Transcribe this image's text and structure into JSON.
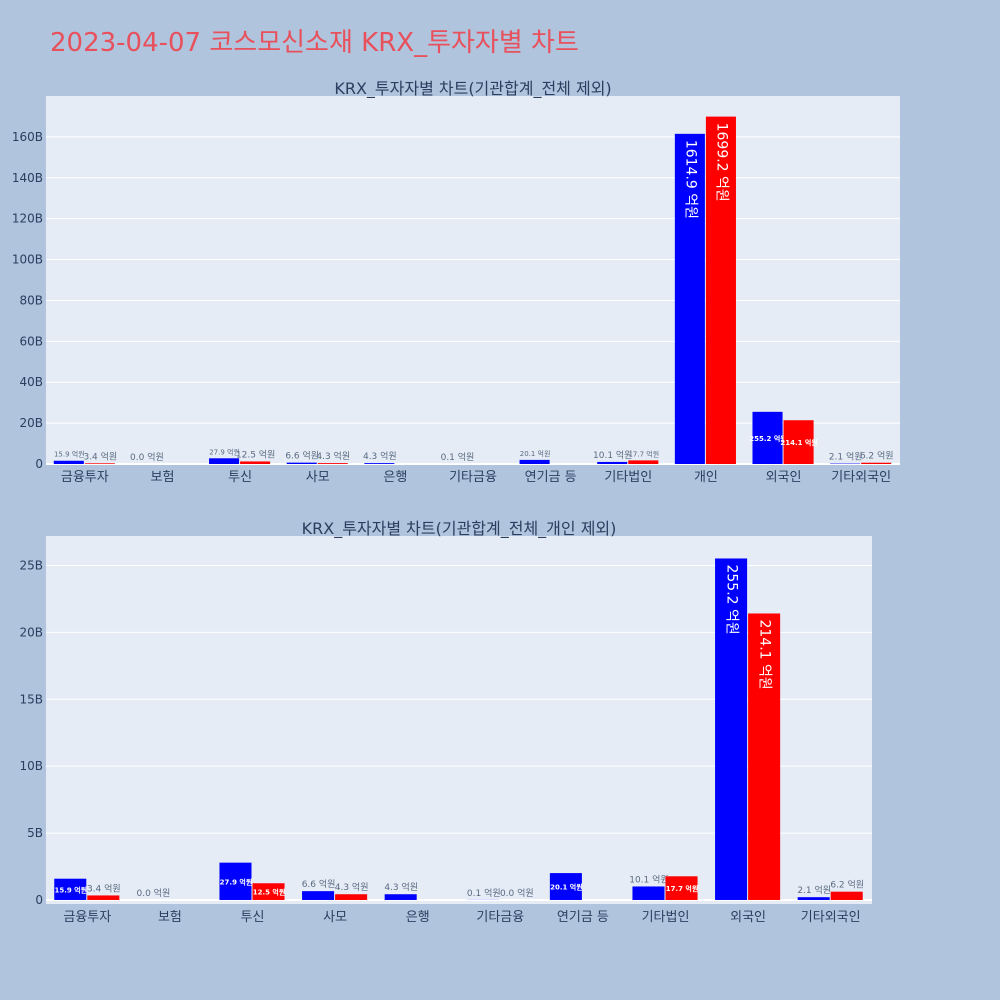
{
  "page": {
    "title": "2023-04-07 코스모신소재 KRX_투자자별 차트"
  },
  "colors": {
    "background": "#b0c4de",
    "plot_bg": "#e5ecf6",
    "buy": "#0000ff",
    "sell": "#ff0000",
    "title": "#e8505b"
  },
  "chart_data": [
    {
      "type": "bar",
      "title": "KRX_투자자별 차트(기관합계_전체 제외)",
      "categories": [
        "금융투자",
        "보험",
        "투신",
        "사모",
        "은행",
        "기타금융",
        "연기금 등",
        "기타법인",
        "개인",
        "외국인",
        "기타외국인"
      ],
      "series": [
        {
          "values": [
            1.59,
            0.0,
            2.79,
            0.66,
            0.43,
            0.01,
            2.01,
            1.01,
            161.49,
            25.52,
            0.21
          ],
          "labels": [
            "15.9 억원",
            "0.0 억원",
            "27.9 억원",
            "6.6 억원",
            "4.3 억원",
            "0.1 억원",
            "20.1 억원",
            "10.1 억원",
            "1614.9 억원",
            "255.2 억원",
            "2.1 억원"
          ]
        },
        {
          "values": [
            0.34,
            null,
            1.25,
            0.43,
            null,
            null,
            null,
            1.77,
            169.92,
            21.41,
            0.62
          ],
          "labels": [
            "3.4 억원",
            "",
            "12.5 억원",
            "4.3 억원",
            "",
            "",
            "",
            "17.7 억원",
            "1699.2 억원",
            "214.1 억원",
            "6.2 억원"
          ]
        }
      ],
      "ylim": [
        0,
        180
      ],
      "yticks": [
        "0",
        "20B",
        "40B",
        "60B",
        "80B",
        "100B",
        "120B",
        "140B",
        "160B"
      ],
      "ytick_values": [
        0,
        20,
        40,
        60,
        80,
        100,
        120,
        140,
        160
      ]
    },
    {
      "type": "bar",
      "title": "KRX_투자자별 차트(기관합계_전체_개인 제외)",
      "categories": [
        "금융투자",
        "보험",
        "투신",
        "사모",
        "은행",
        "기타금융",
        "연기금 등",
        "기타법인",
        "외국인",
        "기타외국인"
      ],
      "series": [
        {
          "values": [
            1.59,
            0.0,
            2.79,
            0.66,
            0.43,
            0.01,
            2.01,
            1.01,
            25.52,
            0.21
          ],
          "labels": [
            "15.9 억원",
            "0.0 억원",
            "27.9 억원",
            "6.6 억원",
            "4.3 억원",
            "0.1 억원",
            "20.1 억원",
            "10.1 억원",
            "255.2 억원",
            "2.1 억원"
          ]
        },
        {
          "values": [
            0.34,
            null,
            1.25,
            0.43,
            null,
            0.0,
            null,
            1.77,
            21.41,
            0.62
          ],
          "labels": [
            "3.4 억원",
            "",
            "12.5 억원",
            "4.3 억원",
            "",
            "0.0 억원",
            "",
            "17.7 억원",
            "214.1 억원",
            "6.2 억원"
          ]
        }
      ],
      "ylim": [
        -0.3,
        27.2
      ],
      "yticks": [
        "0",
        "5B",
        "10B",
        "15B",
        "20B",
        "25B"
      ],
      "ytick_values": [
        0,
        5,
        10,
        15,
        20,
        25
      ]
    }
  ]
}
